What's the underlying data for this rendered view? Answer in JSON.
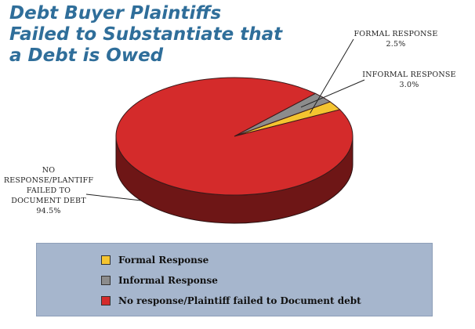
{
  "chart_data": {
    "type": "pie",
    "title_lines": [
      "Debt Buyer Plaintiffs",
      "Failed to Substantiate that",
      "a Debt is Owed"
    ],
    "slices": [
      {
        "name": "Formal Response",
        "label_lines": [
          "FORMAL RESPONSE"
        ],
        "value": 2.5,
        "value_label": "2.5%",
        "color": "#f4c430"
      },
      {
        "name": "Informal Response",
        "label_lines": [
          "INFORMAL RESPONSE"
        ],
        "value": 3.0,
        "value_label": "3.0%",
        "color": "#8c8c8c"
      },
      {
        "name": "No response/Plaintiff failed to Document debt",
        "label_lines": [
          "NO",
          "RESPONSE/PLANTIFF",
          "FAILED TO",
          "DOCUMENT DEBT"
        ],
        "value": 94.5,
        "value_label": "94.5%",
        "color": "#d42b2b"
      }
    ],
    "legend_placement": "bottom"
  }
}
